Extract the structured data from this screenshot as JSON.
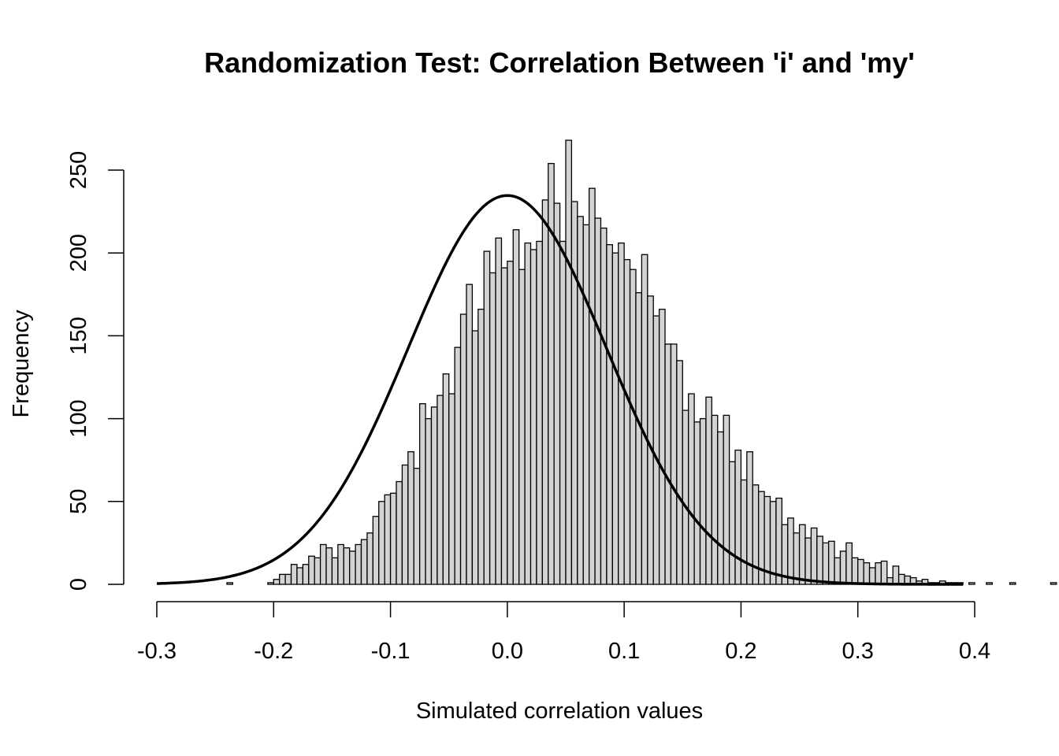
{
  "chart_data": {
    "type": "bar",
    "subtype": "histogram",
    "title": "Randomization Test: Correlation Between 'i' and 'my'",
    "xlabel": "Simulated correlation values",
    "ylabel": "Frequency",
    "xlim": [
      -0.3,
      0.4
    ],
    "ylim": [
      0,
      250
    ],
    "x_ticks": [
      -0.3,
      -0.2,
      -0.1,
      0.0,
      0.1,
      0.2,
      0.3,
      0.4
    ],
    "x_tick_labels": [
      "-0.3",
      "-0.2",
      "-0.1",
      "0.0",
      "0.1",
      "0.2",
      "0.3",
      "0.4"
    ],
    "y_ticks": [
      0,
      50,
      100,
      150,
      200,
      250
    ],
    "y_tick_labels": [
      "0",
      "50",
      "100",
      "150",
      "200",
      "250"
    ],
    "bin_start": -0.3,
    "bin_width": 0.005,
    "counts": [
      0,
      0,
      0,
      0,
      0,
      0,
      0,
      0,
      0,
      0,
      0,
      0,
      1,
      0,
      0,
      0,
      0,
      0,
      0,
      1,
      3,
      6,
      6,
      12,
      10,
      12,
      17,
      16,
      24,
      22,
      16,
      24,
      22,
      20,
      24,
      27,
      31,
      41,
      50,
      54,
      55,
      62,
      72,
      80,
      70,
      109,
      100,
      107,
      114,
      127,
      115,
      143,
      163,
      181,
      153,
      166,
      201,
      188,
      209,
      191,
      195,
      214,
      190,
      206,
      202,
      207,
      232,
      254,
      230,
      207,
      268,
      231,
      222,
      217,
      239,
      221,
      215,
      205,
      200,
      206,
      196,
      190,
      176,
      199,
      174,
      162,
      166,
      145,
      145,
      135,
      105,
      115,
      98,
      100,
      113,
      102,
      92,
      102,
      74,
      81,
      63,
      80,
      60,
      56,
      53,
      50,
      52,
      36,
      40,
      31,
      36,
      28,
      34,
      29,
      25,
      26,
      16,
      20,
      25,
      16,
      15,
      13,
      10,
      13,
      14,
      4,
      11,
      6,
      5,
      4,
      2,
      3,
      1,
      1,
      2,
      1,
      1,
      1,
      0,
      1,
      0,
      0,
      1,
      0,
      0,
      0,
      1,
      0,
      0,
      0,
      0,
      0,
      0,
      1,
      0,
      1,
      0
    ],
    "curve": {
      "type": "normal",
      "mean": 0.0,
      "sd": 0.085,
      "n": 10000
    },
    "grid": false,
    "colors": {
      "bar_fill": "#d3d3d3",
      "bar_stroke": "#000000",
      "curve": "#000000"
    }
  }
}
